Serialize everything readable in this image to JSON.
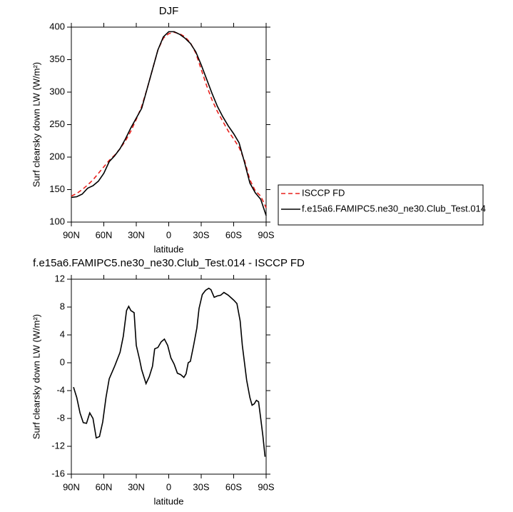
{
  "chart_data": [
    {
      "type": "line",
      "title": "DJF",
      "xlabel": "latitude",
      "ylabel": "Surf clearsky down LW (W/m²)",
      "x": [
        90,
        85,
        80,
        75,
        70,
        65,
        60,
        55,
        50,
        45,
        40,
        35,
        30,
        25,
        20,
        15,
        10,
        5,
        0,
        -5,
        -10,
        -15,
        -20,
        -25,
        -30,
        -35,
        -40,
        -45,
        -50,
        -55,
        -60,
        -65,
        -70,
        -75,
        -80,
        -85,
        -90
      ],
      "series": [
        {
          "name": "ISCCP FD",
          "color": "#e8201c",
          "dash": "dashed",
          "values": [
            140,
            144,
            150,
            157,
            165,
            175,
            185,
            195,
            203,
            213,
            225,
            240,
            258,
            278,
            305,
            335,
            365,
            383,
            390,
            392,
            390,
            385,
            376,
            360,
            335,
            310,
            288,
            270,
            255,
            240,
            228,
            215,
            195,
            165,
            148,
            140,
            122
          ]
        },
        {
          "name": "f.e15a6.FAMIPC5.ne30_ne30.Club_Test.014",
          "color": "#000000",
          "dash": "solid",
          "values": [
            138,
            139,
            143,
            152,
            156,
            163,
            175,
            193,
            202,
            213,
            228,
            245,
            260,
            275,
            305,
            335,
            365,
            385,
            393,
            393,
            389,
            383,
            375,
            362,
            342,
            320,
            298,
            278,
            262,
            248,
            236,
            222,
            192,
            160,
            145,
            135,
            110
          ]
        }
      ],
      "xlim": [
        90,
        -90
      ],
      "ylim": [
        100,
        400
      ],
      "xticks": [
        {
          "value": 90,
          "label": "90N"
        },
        {
          "value": 60,
          "label": "60N"
        },
        {
          "value": 30,
          "label": "30N"
        },
        0,
        {
          "value": -30,
          "label": "30S"
        },
        {
          "value": -60,
          "label": "60S"
        },
        {
          "value": -90,
          "label": "90S"
        }
      ],
      "yticks": [
        100,
        150,
        200,
        250,
        300,
        350,
        400
      ],
      "legend": "right"
    },
    {
      "type": "line",
      "title": "f.e15a6.FAMIPC5.ne30_ne30.Club_Test.014 - ISCCP FD",
      "xlabel": "latitude",
      "ylabel": "Surf clearsky down LW (W/m²)",
      "x": [
        88,
        85,
        82,
        79,
        76,
        73,
        70,
        67,
        64,
        61,
        58,
        55,
        50,
        45,
        42,
        39,
        37,
        35,
        32,
        30,
        27,
        25,
        21,
        18,
        15,
        13,
        10,
        7,
        4,
        1,
        -2,
        -5,
        -8,
        -11,
        -14,
        -16,
        -18,
        -20,
        -23,
        -26,
        -28,
        -31,
        -34,
        -37,
        -39,
        -42,
        -45,
        -48,
        -51,
        -55,
        -60,
        -63,
        -66,
        -68,
        -70,
        -72,
        -75,
        -77,
        -79,
        -81,
        -83,
        -85,
        -87,
        -89
      ],
      "values": [
        -3.5,
        -5,
        -7.2,
        -8.6,
        -8.7,
        -7.2,
        -8,
        -10.8,
        -10.6,
        -8.5,
        -5,
        -2.3,
        -0.5,
        1.5,
        3.8,
        7.5,
        8.1,
        7.5,
        7.2,
        2.5,
        0.5,
        -1,
        -3,
        -2,
        -0.5,
        2,
        2.2,
        3,
        3.4,
        2.5,
        0.7,
        -0.2,
        -1.5,
        -1.7,
        -2.1,
        -1.6,
        0,
        0.2,
        2.5,
        5,
        7.8,
        9.8,
        10.4,
        10.7,
        10.5,
        9.4,
        9.6,
        9.7,
        10.1,
        9.7,
        9,
        8.5,
        6,
        2.5,
        0,
        -2.5,
        -5,
        -6.1,
        -5.9,
        -5.4,
        -5.6,
        -8,
        -10.5,
        -13.5
      ],
      "color": "#000000",
      "xlim": [
        90,
        -90
      ],
      "ylim": [
        -16,
        12
      ],
      "xticks": [
        {
          "value": 90,
          "label": "90N"
        },
        {
          "value": 60,
          "label": "60N"
        },
        {
          "value": 30,
          "label": "30N"
        },
        0,
        {
          "value": -30,
          "label": "30S"
        },
        {
          "value": -60,
          "label": "60S"
        },
        {
          "value": -90,
          "label": "90S"
        }
      ],
      "yticks": [
        -16,
        -12,
        -8,
        -4,
        0,
        4,
        8,
        12
      ]
    }
  ]
}
